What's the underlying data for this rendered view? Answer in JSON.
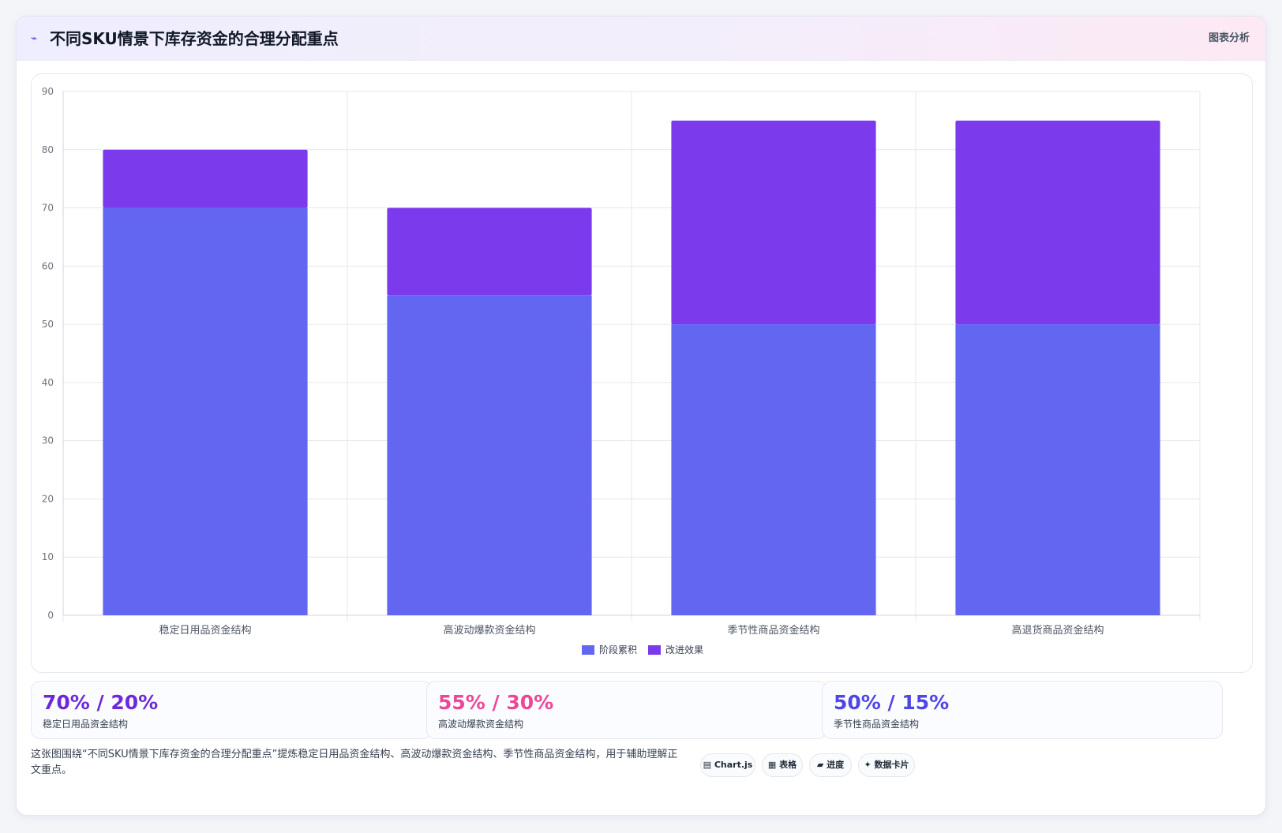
{
  "header": {
    "icon": "⌁",
    "title": "不同SKU情景下库存资金的合理分配重点",
    "right_label": "图表分析"
  },
  "colors": {
    "series_1": "#6366f1",
    "series_2": "#7c3aed",
    "stat_1": "#6d28d9",
    "stat_2": "#ec4899",
    "stat_3": "#4f46e5"
  },
  "chart_data": {
    "type": "bar",
    "stacked": true,
    "categories": [
      "稳定日用品资金结构",
      "高波动爆款资金结构",
      "季节性商品资金结构",
      "高退货商品资金结构"
    ],
    "series": [
      {
        "name": "阶段累积",
        "values": [
          70,
          55,
          50,
          50
        ],
        "color": "#6366f1"
      },
      {
        "name": "改进效果",
        "values": [
          10,
          15,
          35,
          35
        ],
        "color": "#7c3aed"
      }
    ],
    "title": "",
    "xlabel": "",
    "ylabel": "",
    "ylim": [
      0,
      90
    ],
    "yticks": [
      "0",
      "10",
      "20",
      "30",
      "40",
      "50",
      "60",
      "70",
      "80",
      "90"
    ],
    "grid": true,
    "legend_position": "bottom"
  },
  "stats": [
    {
      "value": "70% / 20%",
      "label": "稳定日用品资金结构"
    },
    {
      "value": "55% / 30%",
      "label": "高波动爆款资金结构"
    },
    {
      "value": "50% / 15%",
      "label": "季节性商品资金结构"
    }
  ],
  "description": "这张图围绕“不同SKU情景下库存资金的合理分配重点”提炼稳定日用品资金结构、高波动爆款资金结构、季节性商品资金结构，用于辅助理解正文重点。",
  "chips": [
    {
      "icon": "chart-icon",
      "label": "▤ Chart.js"
    },
    {
      "icon": "table-icon",
      "label": "▦ 表格"
    },
    {
      "icon": "progress-icon",
      "label": "▰ 进度"
    },
    {
      "icon": "sparkle-icon",
      "label": "✦ 数据卡片"
    }
  ]
}
